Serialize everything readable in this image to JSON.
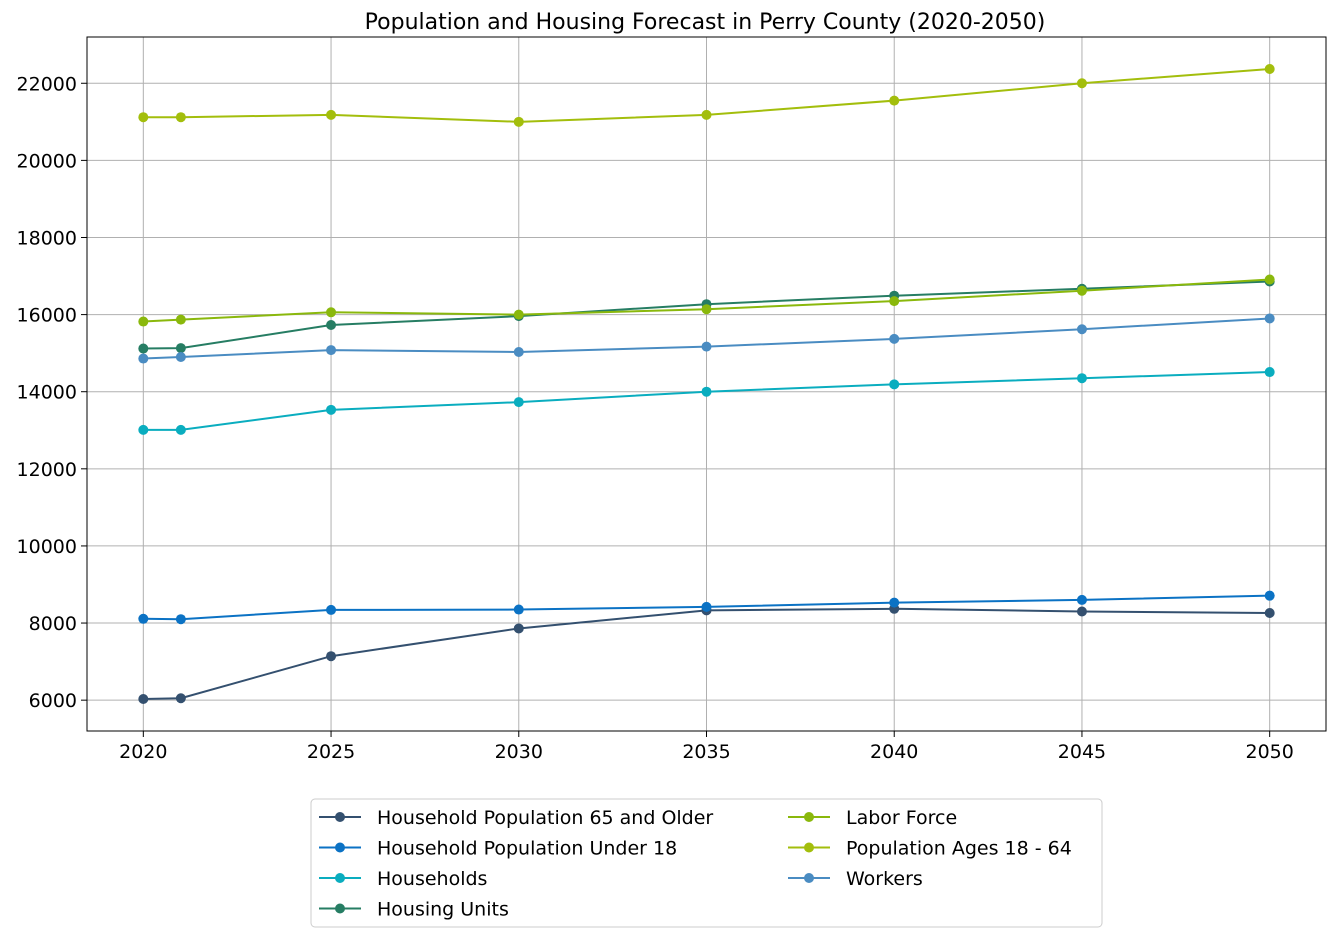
{
  "chart_data": {
    "type": "line",
    "title": "Population and Housing Forecast in Perry County (2020-2050)",
    "xlabel": "",
    "ylabel": "",
    "x": [
      2020,
      2021,
      2025,
      2030,
      2035,
      2040,
      2045,
      2050
    ],
    "xticks": [
      2020,
      2025,
      2030,
      2035,
      2040,
      2045,
      2050
    ],
    "xlim": [
      2018.5,
      2051.5
    ],
    "yticks": [
      6000,
      8000,
      10000,
      12000,
      14000,
      16000,
      18000,
      20000,
      22000
    ],
    "ylim": [
      5200,
      23200
    ],
    "grid": true,
    "legend_position": "below",
    "series": [
      {
        "name": "Household Population 65 and Older",
        "color": "#34506f",
        "values": [
          6030,
          6050,
          7140,
          7860,
          8330,
          8370,
          8300,
          8260
        ]
      },
      {
        "name": "Household Population Under 18",
        "color": "#0b72c4",
        "values": [
          8110,
          8100,
          8340,
          8350,
          8420,
          8530,
          8600,
          8710
        ]
      },
      {
        "name": "Households",
        "color": "#0aadbf",
        "values": [
          13010,
          13010,
          13530,
          13730,
          14000,
          14190,
          14350,
          14510
        ]
      },
      {
        "name": "Housing Units",
        "color": "#267d63",
        "values": [
          15120,
          15130,
          15730,
          15960,
          16270,
          16490,
          16670,
          16860
        ]
      },
      {
        "name": "Labor Force",
        "color": "#8ab80c",
        "values": [
          15820,
          15870,
          16060,
          16000,
          16140,
          16350,
          16620,
          16910
        ]
      },
      {
        "name": "Population Ages 18 - 64",
        "color": "#a3be0c",
        "values": [
          21120,
          21120,
          21180,
          21000,
          21180,
          21550,
          22000,
          22370
        ]
      },
      {
        "name": "Workers",
        "color": "#4a8cc2",
        "values": [
          14860,
          14900,
          15080,
          15030,
          15170,
          15370,
          15620,
          15900
        ]
      }
    ]
  }
}
